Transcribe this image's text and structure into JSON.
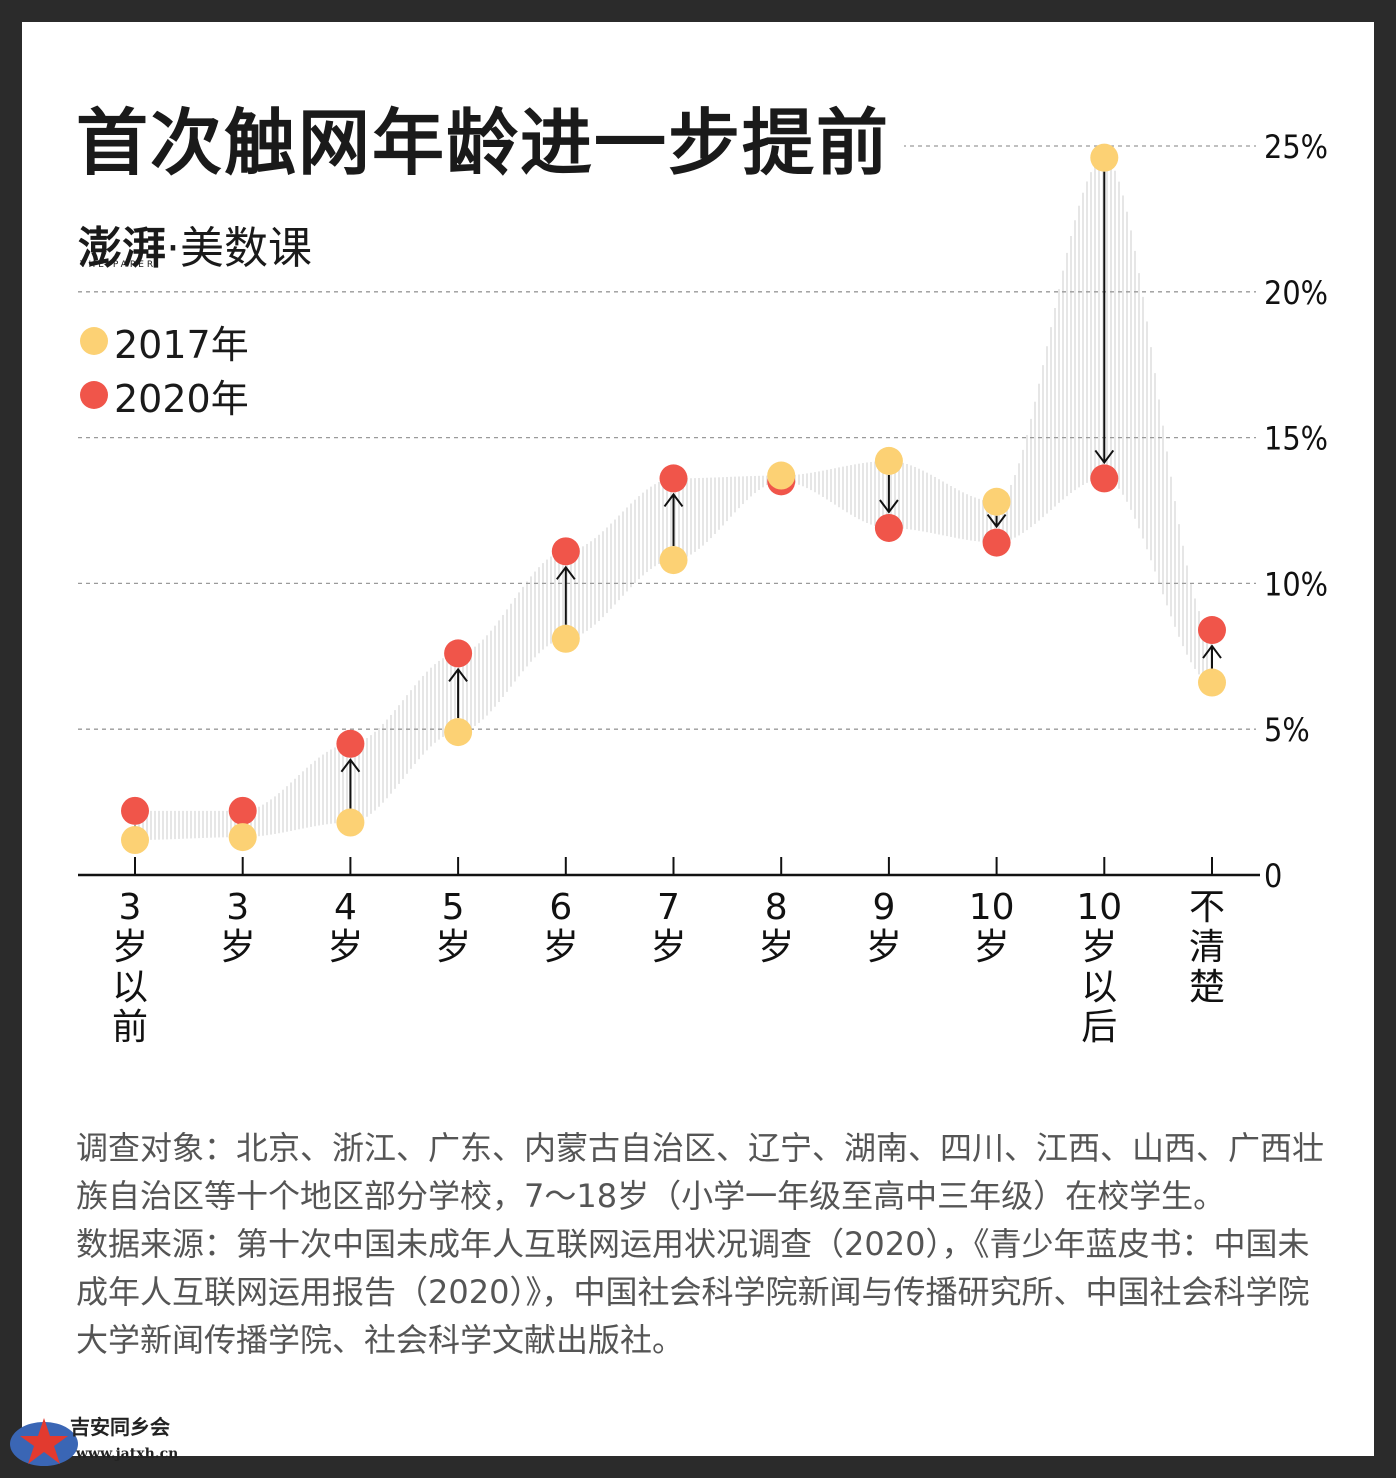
{
  "title": "首次触网年龄进一步提前",
  "brand": {
    "logo_text": "澎湃",
    "logo_sub": "THE PAPER",
    "name": "·美数课"
  },
  "legend": [
    {
      "label": "2017年",
      "color": "#fcd174"
    },
    {
      "label": "2020年",
      "color": "#f0554a"
    }
  ],
  "chart_data": {
    "type": "scatter",
    "categories": [
      "3岁以前",
      "3岁",
      "4岁",
      "5岁",
      "6岁",
      "7岁",
      "8岁",
      "9岁",
      "10岁",
      "10岁以后",
      "不清楚"
    ],
    "category_labels": [
      [
        "3",
        "岁",
        "以",
        "前"
      ],
      [
        "3",
        "岁"
      ],
      [
        "4",
        "岁"
      ],
      [
        "5",
        "岁"
      ],
      [
        "6",
        "岁"
      ],
      [
        "7",
        "岁"
      ],
      [
        "8",
        "岁"
      ],
      [
        "9",
        "岁"
      ],
      [
        "10",
        "岁"
      ],
      [
        "10",
        "岁",
        "以",
        "后"
      ],
      [
        "不",
        "清",
        "楚"
      ]
    ],
    "series": [
      {
        "name": "2017年",
        "color": "#fcd174",
        "values": [
          1.2,
          1.3,
          1.8,
          4.9,
          8.1,
          10.8,
          13.7,
          14.2,
          12.8,
          24.6,
          6.6
        ]
      },
      {
        "name": "2020年",
        "color": "#f0554a",
        "values": [
          2.2,
          2.2,
          4.5,
          7.6,
          11.1,
          13.6,
          13.5,
          11.9,
          11.4,
          13.6,
          8.4
        ]
      }
    ],
    "y_ticks": [
      "0",
      "5%",
      "10%",
      "15%",
      "20%",
      "25%"
    ],
    "y_tick_values": [
      0,
      5,
      10,
      15,
      20,
      25
    ],
    "ylim": [
      0,
      25
    ],
    "grid": true,
    "legend_position": "top-left"
  },
  "notes": [
    "调查对象：北京、浙江、广东、内蒙古自治区、辽宁、湖南、四川、江西、山西、广西壮族自治区等十个地区部分学校，7～18岁（小学一年级至高中三年级）在校学生。",
    "数据来源：第十次中国未成年人互联网运用状况调查（2020），《青少年蓝皮书：中国未成年人互联网运用报告（2020）》，中国社会科学院新闻与传播研究所、中国社会科学院大学新闻传播学院、社会科学文献出版社。"
  ],
  "watermark": {
    "name": "吉安同乡会",
    "site": "www.jatxh.cn"
  }
}
